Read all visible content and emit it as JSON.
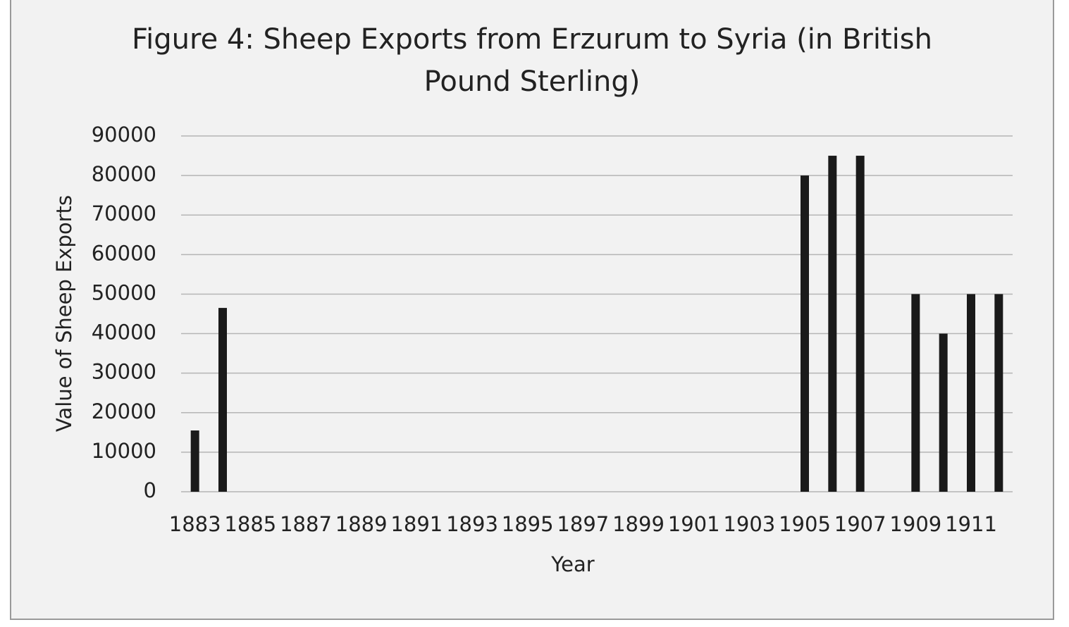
{
  "chart_data": {
    "type": "bar",
    "title": "Figure 4: Sheep Exports from Erzurum to Syria (in British Pound Sterling)",
    "x_label": "Year",
    "y_label": "Value of Sheep Exports",
    "categories": [
      "1883",
      null,
      "1885",
      null,
      "1887",
      null,
      "1889",
      null,
      "1891",
      null,
      "1893",
      null,
      "1895",
      null,
      "1897",
      null,
      "1899",
      null,
      "1901",
      null,
      "1903",
      null,
      "1905",
      null,
      "1907",
      null,
      "1909",
      null,
      "1911",
      null
    ],
    "values": [
      15500,
      46500,
      null,
      null,
      null,
      null,
      null,
      null,
      null,
      null,
      null,
      null,
      null,
      null,
      null,
      null,
      null,
      null,
      null,
      null,
      null,
      null,
      80000,
      85000,
      85000,
      null,
      50000,
      40000,
      50000,
      50000
    ],
    "color": "#1a1a1a",
    "ylim": [
      0,
      90000
    ],
    "yticks": [
      0,
      10000,
      20000,
      30000,
      40000,
      50000,
      60000,
      70000,
      80000,
      90000
    ],
    "grid": true
  }
}
